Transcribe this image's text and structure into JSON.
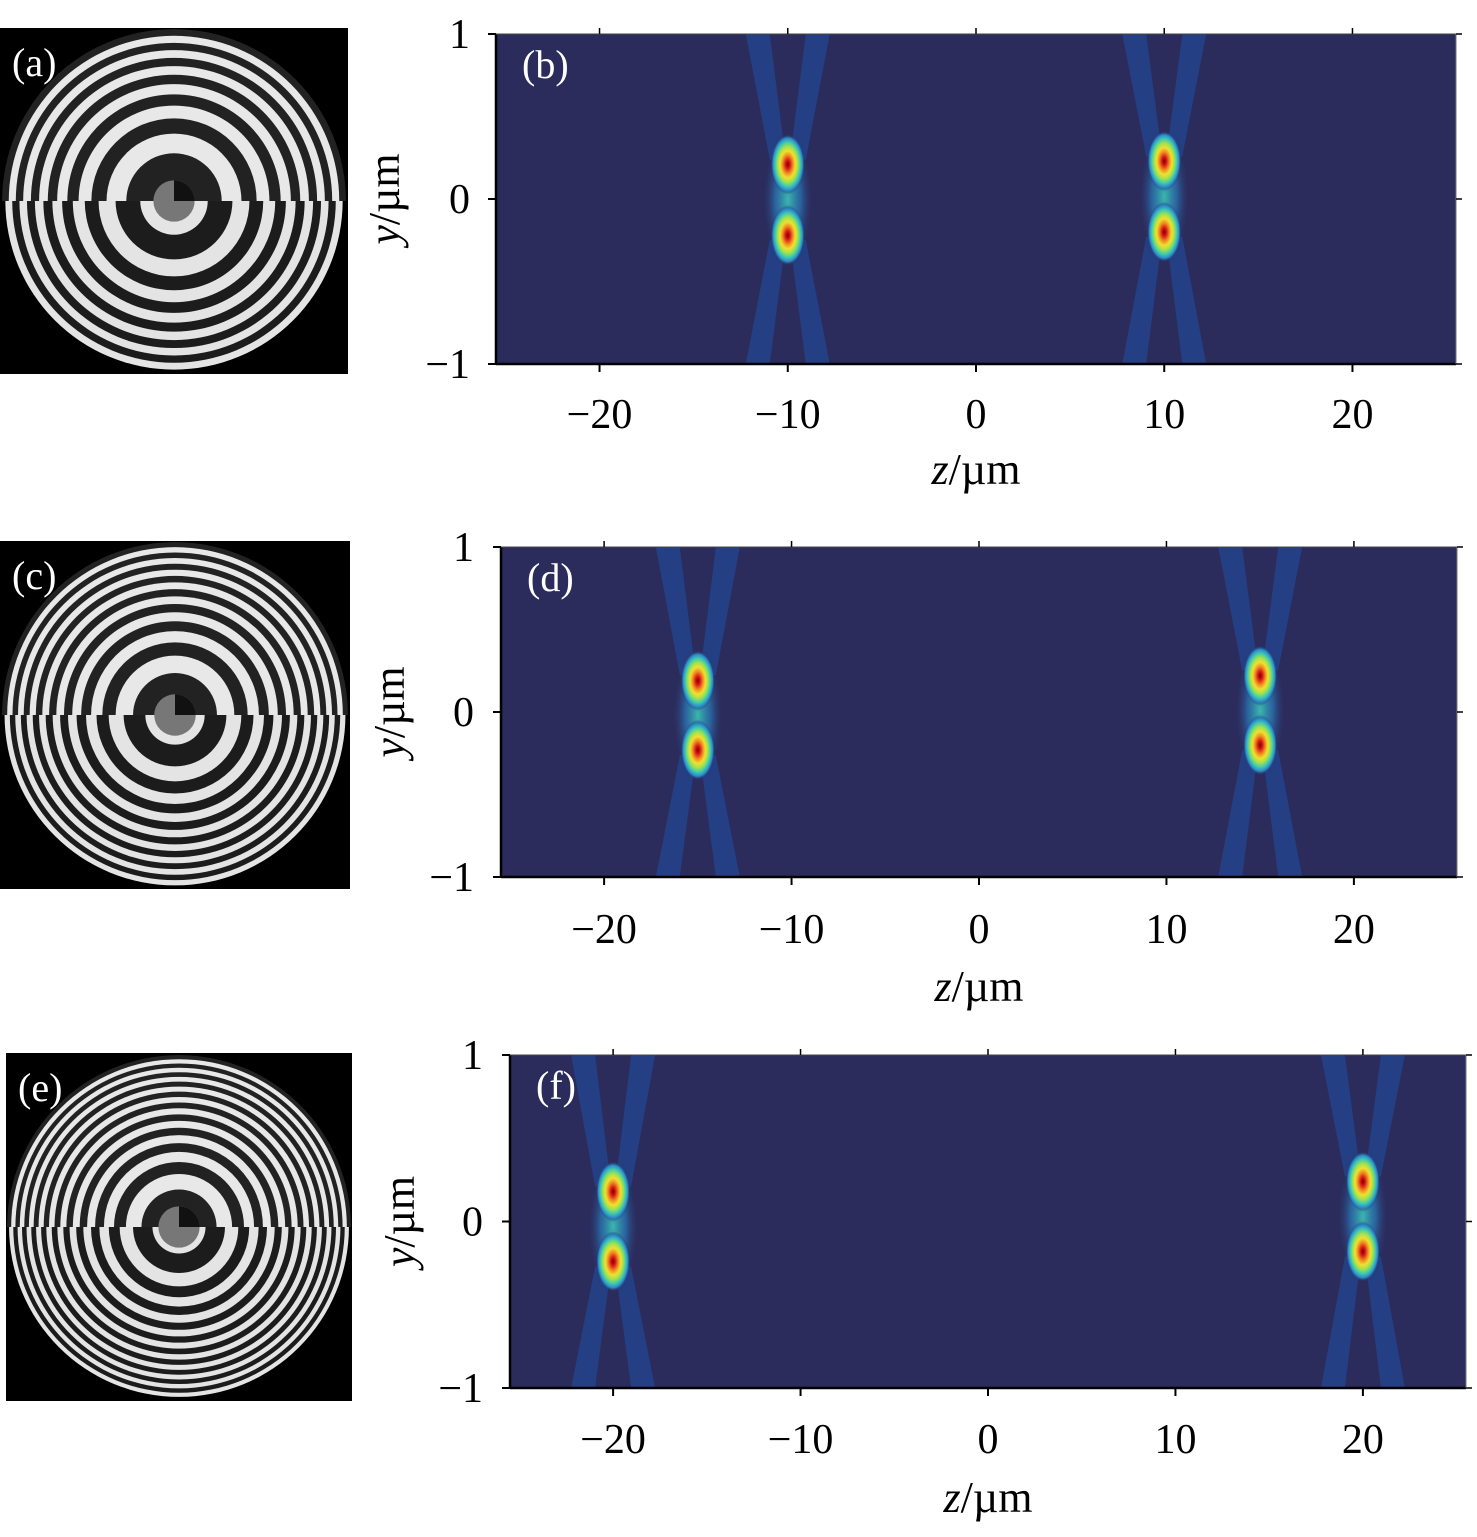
{
  "colors": {
    "background": "#2b2b5c",
    "mask_black": "#000000",
    "axis": "#000000",
    "colormap": [
      "#2b2b5c",
      "#1f4d9e",
      "#2a86c9",
      "#3cc7b4",
      "#9fe24f",
      "#f0e030",
      "#f08a20",
      "#d81818",
      "#7a0000"
    ]
  },
  "panels": [
    {
      "mask_label": "(a)",
      "plot_label": "(b)",
      "chart_data": {
        "type": "heatmap",
        "xlabel_italic": "z",
        "xlabel_unit": "/µm",
        "ylabel_italic": "y",
        "ylabel_unit": "/µm",
        "xlim": [
          -25.5,
          25.5
        ],
        "ylim": [
          -1,
          1
        ],
        "xticks": [
          -20,
          -10,
          0,
          10,
          20
        ],
        "xtick_labels": [
          "−20",
          "−10",
          "0",
          "10",
          "20"
        ],
        "yticks": [
          1,
          0,
          -1
        ],
        "ytick_labels": [
          "1",
          "0",
          "−1"
        ],
        "foci": [
          {
            "z": -10,
            "y": [
              0.21,
              -0.22
            ]
          },
          {
            "z": 10,
            "y": [
              0.23,
              -0.2
            ]
          }
        ],
        "ring_count": 13
      }
    },
    {
      "mask_label": "(c)",
      "plot_label": "(d)",
      "chart_data": {
        "type": "heatmap",
        "xlabel_italic": "z",
        "xlabel_unit": "/µm",
        "ylabel_italic": "y",
        "ylabel_unit": "/µm",
        "xlim": [
          -25.5,
          25.5
        ],
        "ylim": [
          -1,
          1
        ],
        "xticks": [
          -20,
          -10,
          0,
          10,
          20
        ],
        "xtick_labels": [
          "−20",
          "−10",
          "0",
          "10",
          "20"
        ],
        "yticks": [
          1,
          0,
          -1
        ],
        "ytick_labels": [
          "1",
          "0",
          "−1"
        ],
        "foci": [
          {
            "z": -15,
            "y": [
              0.19,
              -0.23
            ]
          },
          {
            "z": 15,
            "y": [
              0.22,
              -0.2
            ]
          }
        ],
        "ring_count": 17
      }
    },
    {
      "mask_label": "(e)",
      "plot_label": "(f)",
      "chart_data": {
        "type": "heatmap",
        "xlabel_italic": "z",
        "xlabel_unit": "/µm",
        "ylabel_italic": "y",
        "ylabel_unit": "/µm",
        "xlim": [
          -25.5,
          25.5
        ],
        "ylim": [
          -1,
          1
        ],
        "xticks": [
          -20,
          -10,
          0,
          10,
          20
        ],
        "xtick_labels": [
          "−20",
          "−10",
          "0",
          "10",
          "20"
        ],
        "yticks": [
          1,
          0,
          -1
        ],
        "ytick_labels": [
          "1",
          "0",
          "−1"
        ],
        "foci": [
          {
            "z": -20,
            "y": [
              0.18,
              -0.24
            ]
          },
          {
            "z": 20,
            "y": [
              0.24,
              -0.18
            ]
          }
        ],
        "ring_count": 21
      }
    }
  ]
}
